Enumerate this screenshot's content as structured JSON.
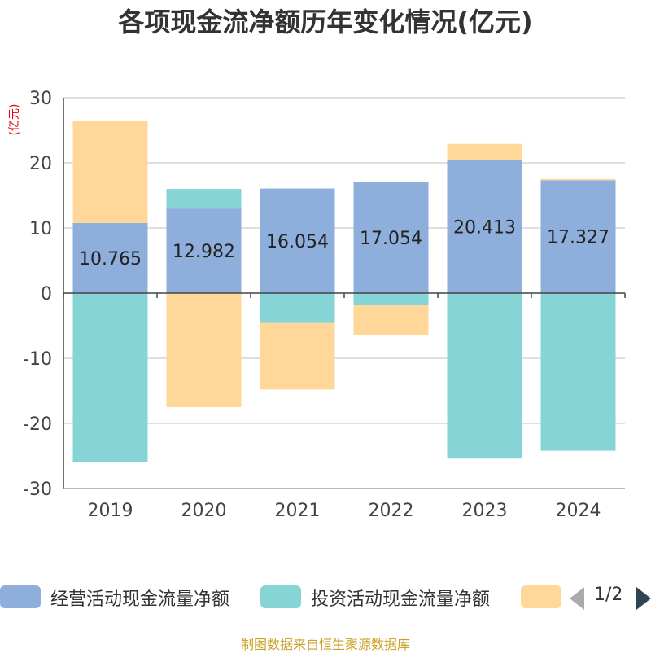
{
  "chart_data": {
    "type": "bar",
    "stacked": true,
    "title": "各项现金流净额历年变化情况(亿元)",
    "ylabel": "(亿元)",
    "xlabel": "",
    "categories": [
      "2019",
      "2020",
      "2021",
      "2022",
      "2023",
      "2024"
    ],
    "ylim": [
      -30,
      30
    ],
    "yticks": [
      30,
      20,
      10,
      0,
      -10,
      -20,
      -30
    ],
    "grid": true,
    "series": [
      {
        "name": "经营活动现金流量净额",
        "color": "#8eaedb",
        "values": [
          10.765,
          12.982,
          16.054,
          17.054,
          20.413,
          17.327
        ],
        "show_labels": true
      },
      {
        "name": "投资活动现金流量净额",
        "color": "#87d4d6",
        "values": [
          -26.0,
          3.0,
          -4.6,
          -1.9,
          -25.4,
          -24.2
        ],
        "show_labels": false
      },
      {
        "name": "",
        "color": "#ffd899",
        "values": [
          15.7,
          -17.5,
          -10.2,
          -4.6,
          2.5,
          0.2
        ],
        "show_labels": false
      }
    ],
    "legend_position": "bottom"
  },
  "legend": {
    "page": "1/2"
  },
  "source_note": "制图数据来自恒生聚源数据库"
}
